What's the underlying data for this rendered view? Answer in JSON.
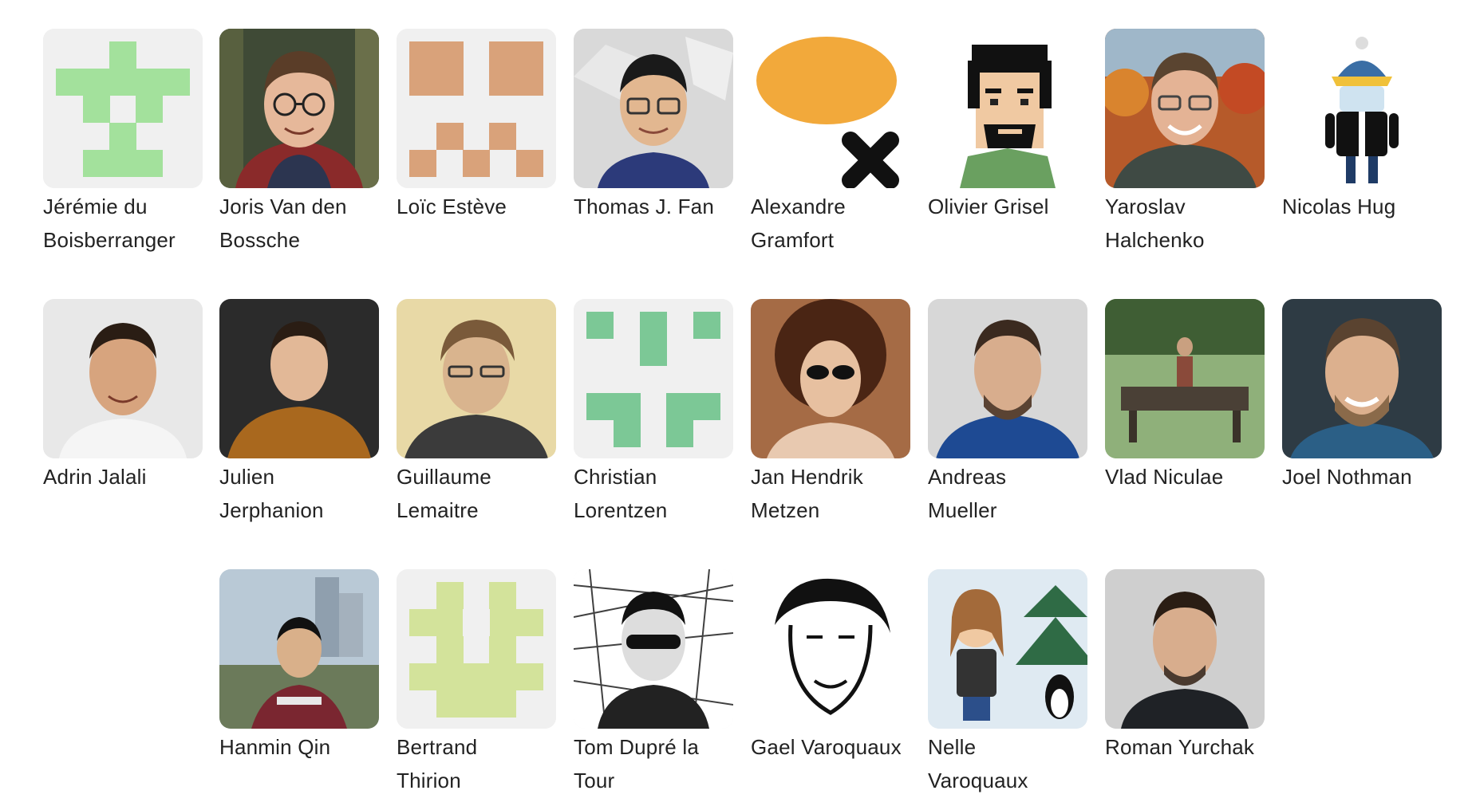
{
  "team": {
    "members": [
      {
        "name": "Jérémie du Boisberranger",
        "name_line1": "Jérémie du",
        "name_line2": "Boisberranger",
        "avatar": "identicon-green"
      },
      {
        "name": "Joris Van den Bossche",
        "name_line1": "Joris Van den",
        "name_line2": "Bossche",
        "avatar": "photo"
      },
      {
        "name": "Loïc Estève",
        "name_line1": "Loïc Estève",
        "name_line2": "",
        "avatar": "identicon-tan"
      },
      {
        "name": "Thomas J. Fan",
        "name_line1": "Thomas J. Fan",
        "name_line2": "",
        "avatar": "photo"
      },
      {
        "name": "Alexandre Gramfort",
        "name_line1": "Alexandre",
        "name_line2": "Gramfort",
        "avatar": "orange-blob-drawing"
      },
      {
        "name": "Olivier Grisel",
        "name_line1": "Olivier Grisel",
        "name_line2": "",
        "avatar": "pixel-art-portrait"
      },
      {
        "name": "Yaroslav Halchenko",
        "name_line1": "Yaroslav",
        "name_line2": "Halchenko",
        "avatar": "photo"
      },
      {
        "name": "Nicolas Hug",
        "name_line1": "Nicolas Hug",
        "name_line2": "",
        "avatar": "android-figure"
      },
      {
        "name": "Adrin Jalali",
        "name_line1": "Adrin Jalali",
        "name_line2": "",
        "avatar": "photo"
      },
      {
        "name": "Julien Jerphanion",
        "name_line1": "Julien",
        "name_line2": "Jerphanion",
        "avatar": "photo"
      },
      {
        "name": "Guillaume Lemaitre",
        "name_line1": "Guillaume",
        "name_line2": "Lemaitre",
        "avatar": "photo"
      },
      {
        "name": "Christian Lorentzen",
        "name_line1": "Christian",
        "name_line2": "Lorentzen",
        "avatar": "identicon-mint"
      },
      {
        "name": "Jan Hendrik Metzen",
        "name_line1": "Jan Hendrik",
        "name_line2": "Metzen",
        "avatar": "photo"
      },
      {
        "name": "Andreas Mueller",
        "name_line1": "Andreas",
        "name_line2": "Mueller",
        "avatar": "photo"
      },
      {
        "name": "Vlad Niculae",
        "name_line1": "Vlad Niculae",
        "name_line2": "",
        "avatar": "photo"
      },
      {
        "name": "Joel Nothman",
        "name_line1": "Joel Nothman",
        "name_line2": "",
        "avatar": "photo"
      },
      {
        "name": "Hanmin Qin",
        "name_line1": "Hanmin Qin",
        "name_line2": "",
        "avatar": "photo"
      },
      {
        "name": "Bertrand Thirion",
        "name_line1": "Bertrand",
        "name_line2": "Thirion",
        "avatar": "identicon-lime"
      },
      {
        "name": "Tom Dupré la Tour",
        "name_line1": "Tom Dupré la",
        "name_line2": "Tour",
        "avatar": "sketch-bw"
      },
      {
        "name": "Gael Varoquaux",
        "name_line1": "Gael Varoquaux",
        "name_line2": "",
        "avatar": "line-drawing"
      },
      {
        "name": "Nelle Varoquaux",
        "name_line1": "Nelle",
        "name_line2": "Varoquaux",
        "avatar": "cartoon-penguin"
      },
      {
        "name": "Roman Yurchak",
        "name_line1": "Roman Yurchak",
        "name_line2": "",
        "avatar": "photo"
      }
    ]
  },
  "colors": {
    "identicon_green": "#a3e19c",
    "identicon_tan": "#d9a27a",
    "identicon_mint": "#7cc896",
    "identicon_lime": "#d3e39b",
    "identicon_bg": "#f0f0f0",
    "orange_blob": "#f2a93b",
    "name_text": "#222222"
  }
}
